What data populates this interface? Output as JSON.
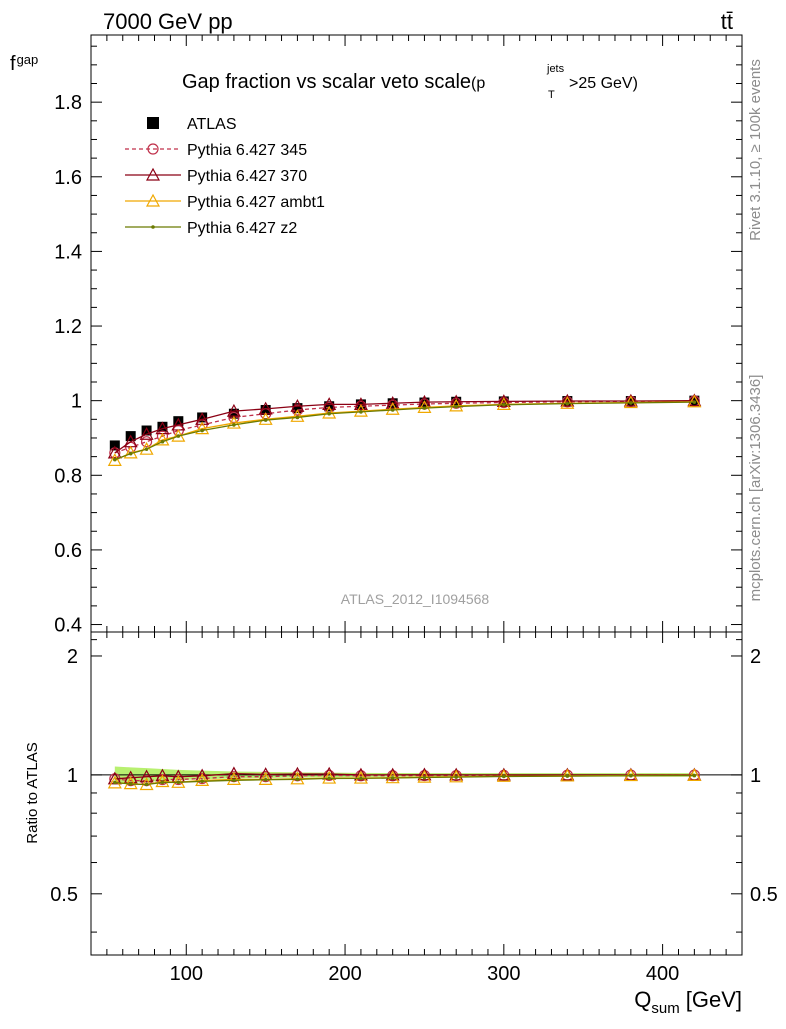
{
  "header": {
    "energy_label": "7000 GeV pp",
    "process_label": "tt̄",
    "watermark": "ATLAS_2012_I1094568",
    "side_rivet": "Rivet 3.1.10, ≥ 100k events",
    "side_mcplots": "mcplots.cern.ch [arXiv:1306.3436]"
  },
  "chart_data": {
    "type": "line",
    "title": "Gap fraction vs scalar veto scale",
    "title_cut_main": "p",
    "title_cut_sup": "jets",
    "title_cut_sub": "T",
    "title_cut_rest": ">25 GeV)",
    "title_cut_open": "(",
    "ylabel_main": "f",
    "ylabel_sub": "gap",
    "xlabel_main": "Q",
    "xlabel_sub": "sum",
    "xlabel_unit": "[GeV]",
    "ratio_ylabel": "Ratio to ATLAS",
    "xlim": [
      40,
      450
    ],
    "ylim": [
      0.38,
      1.98
    ],
    "ratio_ylim": [
      0.35,
      2.3
    ],
    "ratio_log": true,
    "main_yticks": [
      0.4,
      0.6,
      0.8,
      1.0,
      1.2,
      1.4,
      1.6,
      1.8
    ],
    "main_ytick_labels": [
      "0.4",
      "0.6",
      "0.8",
      "1",
      "1.2",
      "1.4",
      "1.6",
      "1.8"
    ],
    "ratio_yticks": [
      0.5,
      1,
      2
    ],
    "ratio_ytick_labels": [
      "0.5",
      "1",
      "2"
    ],
    "xticks": [
      100,
      200,
      300,
      400
    ],
    "xtick_labels": [
      "100",
      "200",
      "300",
      "400"
    ],
    "x": [
      55,
      65,
      75,
      85,
      95,
      110,
      130,
      150,
      170,
      190,
      210,
      230,
      250,
      270,
      300,
      340,
      380,
      420
    ],
    "legend_position": "top-left",
    "series": [
      {
        "name": "ATLAS",
        "color": "#000000",
        "marker": "square",
        "dash": "none",
        "values": [
          0.88,
          0.905,
          0.92,
          0.93,
          0.945,
          0.955,
          0.965,
          0.975,
          0.98,
          0.985,
          0.99,
          0.993,
          0.995,
          0.997,
          0.998,
          0.999,
          0.999,
          1.0
        ]
      },
      {
        "name": "Pythia 6.427 345",
        "color": "#c0304a",
        "marker": "circle-open",
        "dash": "4,3",
        "values": [
          0.86,
          0.875,
          0.89,
          0.905,
          0.92,
          0.935,
          0.955,
          0.965,
          0.975,
          0.982,
          0.985,
          0.988,
          0.991,
          0.993,
          0.995,
          0.997,
          0.998,
          0.999
        ]
      },
      {
        "name": "Pythia 6.427 370",
        "color": "#8b0014",
        "marker": "triangle-open",
        "dash": "none",
        "values": [
          0.86,
          0.89,
          0.91,
          0.925,
          0.935,
          0.95,
          0.972,
          0.978,
          0.985,
          0.99,
          0.99,
          0.993,
          0.996,
          0.997,
          0.998,
          0.999,
          0.999,
          1.0
        ]
      },
      {
        "name": "Pythia 6.427 ambt1",
        "color": "#f0a800",
        "marker": "triangle-open",
        "dash": "none",
        "values": [
          0.84,
          0.86,
          0.87,
          0.895,
          0.905,
          0.925,
          0.94,
          0.95,
          0.958,
          0.967,
          0.972,
          0.977,
          0.982,
          0.986,
          0.99,
          0.993,
          0.995,
          0.997
        ]
      },
      {
        "name": "Pythia 6.427 z2",
        "color": "#6b7a00",
        "marker": "dot",
        "dash": "none",
        "values": [
          0.842,
          0.858,
          0.87,
          0.89,
          0.905,
          0.92,
          0.935,
          0.948,
          0.955,
          0.965,
          0.97,
          0.975,
          0.98,
          0.984,
          0.989,
          0.992,
          0.994,
          0.996
        ]
      }
    ],
    "ratio_band": {
      "color": "#b8f070",
      "values": [
        1.05,
        1.045,
        1.04,
        1.035,
        1.03,
        1.025,
        1.02,
        1.018,
        1.015,
        1.013,
        1.012,
        1.011,
        1.01,
        1.01,
        1.01,
        1.01,
        1.01,
        1.01
      ]
    }
  }
}
